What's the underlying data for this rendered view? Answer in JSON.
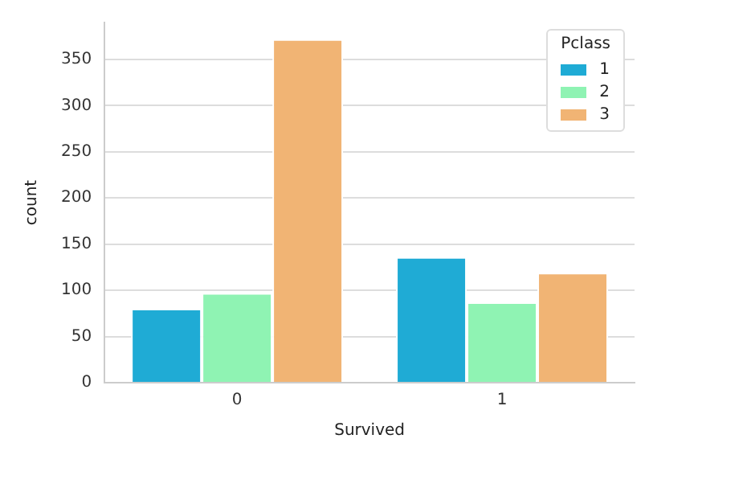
{
  "chart_data": {
    "type": "bar",
    "xlabel": "Survived",
    "ylabel": "count",
    "legend_title": "Pclass",
    "categories": [
      "0",
      "1"
    ],
    "series": [
      {
        "name": "1",
        "color": "#1fabd5",
        "values": [
          80,
          136
        ]
      },
      {
        "name": "2",
        "color": "#8ff3b3",
        "values": [
          97,
          87
        ]
      },
      {
        "name": "3",
        "color": "#f1b474",
        "values": [
          372,
          119
        ]
      }
    ],
    "ylim": [
      0,
      390
    ],
    "yticks": [
      0,
      50,
      100,
      150,
      200,
      250,
      300,
      350
    ],
    "grid": "y",
    "legend": "top right"
  }
}
